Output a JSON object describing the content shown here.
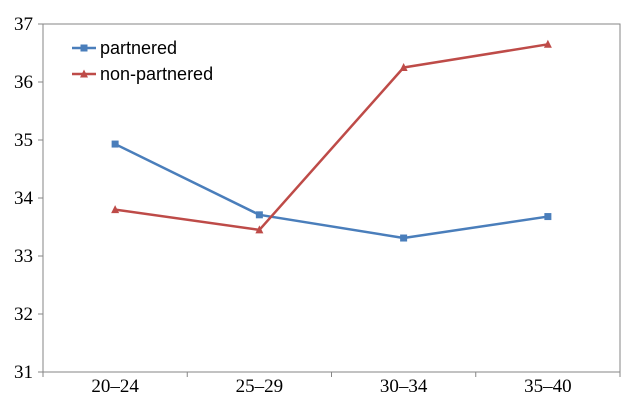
{
  "chart_data": {
    "type": "line",
    "categories": [
      "20–24",
      "25–29",
      "30–34",
      "35–40"
    ],
    "series": [
      {
        "name": "partnered",
        "values": [
          34.93,
          33.71,
          33.31,
          33.68
        ],
        "color": "#4a7ebb",
        "marker": "square"
      },
      {
        "name": "non-partnered",
        "values": [
          33.8,
          33.45,
          36.25,
          36.65
        ],
        "color": "#be4b48",
        "marker": "triangle"
      }
    ],
    "ylim": [
      31,
      37
    ],
    "yticks": [
      "31",
      "32",
      "33",
      "34",
      "35",
      "36",
      "37"
    ],
    "grid": false,
    "legend_position": "top-left",
    "title": "",
    "xlabel": "",
    "ylabel": ""
  }
}
